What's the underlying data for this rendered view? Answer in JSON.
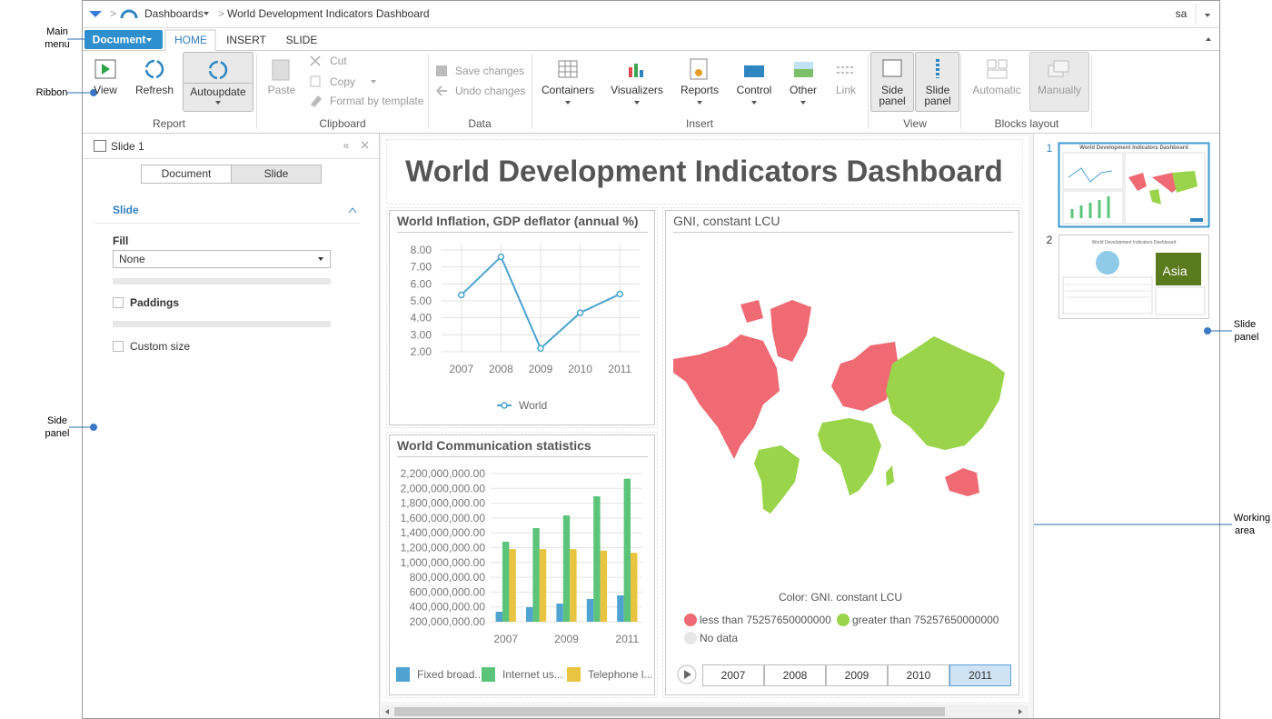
{
  "annotations": {
    "main_menu": [
      "Main",
      "menu"
    ],
    "ribbon": "Ribbon",
    "side_panel": [
      "Side",
      "panel"
    ],
    "working_area": [
      "Working",
      "area"
    ],
    "slide_panel": [
      "Slide",
      "panel"
    ]
  },
  "top_bar": {
    "breadcrumb": "Dashboards",
    "title": "World Development Indicators Dashboard",
    "user": "sa"
  },
  "menu": {
    "document": "Document",
    "tabs": [
      "HOME",
      "INSERT",
      "SLIDE"
    ]
  },
  "ribbon": {
    "groups": [
      {
        "label": "Report",
        "buttons": [
          "View",
          "Refresh",
          "Autoupdate"
        ]
      },
      {
        "label": "Clipboard",
        "buttons": [
          "Paste",
          "Cut",
          "Copy",
          "Format by template"
        ]
      },
      {
        "label": "Data",
        "buttons": [
          "Save changes",
          "Undo changes"
        ]
      },
      {
        "label": "Insert",
        "buttons": [
          "Containers",
          "Visualizers",
          "Reports",
          "Control",
          "Other",
          "Link"
        ]
      },
      {
        "label": "View",
        "buttons": [
          [
            "Side",
            "panel"
          ],
          [
            "Slide",
            "panel"
          ]
        ]
      },
      {
        "label": "Blocks layout",
        "buttons": [
          "Automatic",
          "Manually"
        ]
      }
    ]
  },
  "side_panel": {
    "header": "Slide 1",
    "tabs": [
      "Document",
      "Slide"
    ],
    "section": "Slide",
    "fill_label": "Fill",
    "fill_value": "None",
    "paddings": "Paddings",
    "custom_size": "Custom size"
  },
  "dashboard": {
    "title": "World Development Indicators Dashboard",
    "map": {
      "title": "GNI, constant LCU",
      "legend_title": "Color: GNI. constant LCU",
      "legend": [
        {
          "label": "less than 75257650000000",
          "color": "#ef6a73"
        },
        {
          "label": "greater than 75257650000000",
          "color": "#9ad44a"
        },
        {
          "label": "No data",
          "color": "#e6e6e6"
        }
      ],
      "years": [
        "2007",
        "2008",
        "2009",
        "2010",
        "2011"
      ],
      "selected_year": "2011"
    }
  },
  "slide_panel": {
    "slides": [
      "1",
      "2"
    ],
    "thumbnail_label": "Asia"
  },
  "chart_data": [
    {
      "type": "line",
      "title": "World Inflation, GDP deflator (annual %)",
      "categories": [
        "2007",
        "2008",
        "2009",
        "2010",
        "2011"
      ],
      "series": [
        {
          "name": "World",
          "color": "#4ba3cf",
          "values": [
            5.35,
            7.6,
            2.2,
            4.3,
            5.4
          ]
        }
      ],
      "ylim": [
        2,
        8
      ],
      "yticks": [
        {
          "value": 2,
          "label": "2.00"
        },
        {
          "value": 3,
          "label": "3.00"
        },
        {
          "value": 4,
          "label": "4.00"
        },
        {
          "value": 5,
          "label": "5.00"
        },
        {
          "value": 6,
          "label": "6.00"
        },
        {
          "value": 7,
          "label": "7.00"
        },
        {
          "value": 8,
          "label": "8.00"
        }
      ],
      "grid": true
    },
    {
      "type": "bar",
      "title": "World Communication statistics",
      "categories": [
        "2007",
        null,
        "2009",
        null,
        "2011"
      ],
      "series": [
        {
          "name": "Fixed broad...",
          "color": "#4fa3d1",
          "values": [
            335000000,
            396000000,
            445000000,
            507000000,
            556000000
          ]
        },
        {
          "name": "Internet us...",
          "color": "#5cc47a",
          "values": [
            1280000000,
            1464000000,
            1636000000,
            1893000000,
            2130000000
          ]
        },
        {
          "name": "Telephone l...",
          "color": "#e8c440",
          "values": [
            1180000000,
            1180000000,
            1180000000,
            1160000000,
            1130000000
          ]
        }
      ],
      "ylim": [
        200000000,
        2200000000
      ],
      "yticks": [
        {
          "value": 200000000,
          "label": "200,000,000.00"
        },
        {
          "value": 400000000,
          "label": "400,000,000.00"
        },
        {
          "value": 600000000,
          "label": "600,000,000.00"
        },
        {
          "value": 800000000,
          "label": "800,000,000.00"
        },
        {
          "value": 1000000000,
          "label": "1,000,000,000.00"
        },
        {
          "value": 1200000000,
          "label": "1,200,000,000.00"
        },
        {
          "value": 1400000000,
          "label": "1,400,000,000.00"
        },
        {
          "value": 1600000000,
          "label": "1,600,000,000.00"
        },
        {
          "value": 1800000000,
          "label": "1,800,000,000.00"
        },
        {
          "value": 2000000000,
          "label": "2,000,000,000.00"
        },
        {
          "value": 2200000000,
          "label": "2,200,000,000.00"
        }
      ],
      "grid": true
    }
  ]
}
